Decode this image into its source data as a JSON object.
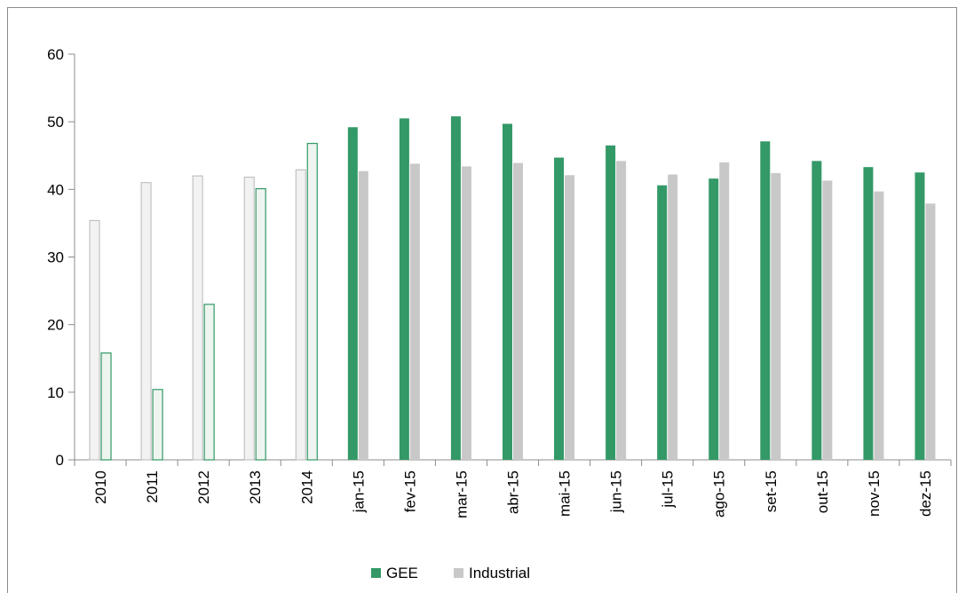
{
  "chart_data": {
    "type": "bar",
    "categories": [
      "2010",
      "2011",
      "2012",
      "2013",
      "2014",
      "jan-15",
      "fev-15",
      "mar-15",
      "abr-15",
      "mai-15",
      "jun-15",
      "jul-15",
      "ago-15",
      "set-15",
      "out-15",
      "nov-15",
      "dez-15"
    ],
    "series": [
      {
        "name": "GEE",
        "color": "#339966",
        "values": [
          15.8,
          10.4,
          23.0,
          40.1,
          46.8,
          49.2,
          50.5,
          50.8,
          49.7,
          44.7,
          46.5,
          40.6,
          41.6,
          47.1,
          44.2,
          43.3,
          42.5
        ]
      },
      {
        "name": "Industrial",
        "color": "#c8c8c8",
        "values": [
          35.4,
          41.0,
          42.0,
          41.8,
          42.9,
          42.7,
          43.8,
          43.4,
          43.9,
          42.1,
          44.2,
          42.2,
          44.0,
          42.4,
          41.3,
          39.7,
          37.9
        ]
      }
    ],
    "annual_categories_count": 5,
    "annual_style": {
      "GEE": "outlined-green",
      "Industrial": "outlined-grey"
    },
    "ylim": [
      0,
      60
    ],
    "yticks": [
      "0",
      "10",
      "20",
      "30",
      "40",
      "50",
      "60"
    ],
    "title": "",
    "xlabel": "",
    "ylabel": "",
    "grid": false,
    "legend_position": "bottom",
    "legend": [
      "GEE",
      "Industrial"
    ]
  }
}
